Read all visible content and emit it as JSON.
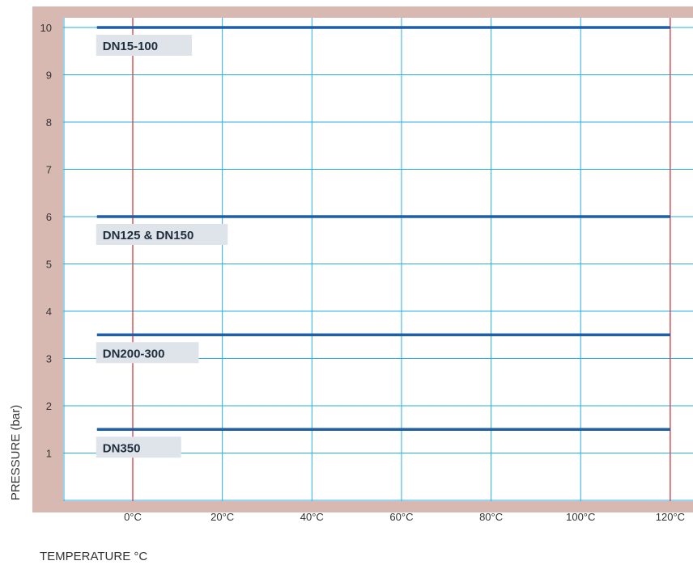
{
  "chart_data": {
    "type": "line",
    "title": "",
    "xlabel": "TEMPERATURE °C",
    "ylabel": "PRESSURE (bar)",
    "x_ticks": [
      0,
      20,
      40,
      60,
      80,
      100,
      120
    ],
    "x_tick_labels": [
      "0°C",
      "20°C",
      "40°C",
      "60°C",
      "80°C",
      "100°C",
      "120°C"
    ],
    "xlim": [
      -15,
      125
    ],
    "y_ticks": [
      1,
      2,
      3,
      4,
      5,
      6,
      7,
      8,
      9,
      10
    ],
    "y_tick_labels": [
      "1",
      "2",
      "3",
      "4",
      "5",
      "6",
      "7",
      "8",
      "9",
      "10"
    ],
    "ylim": [
      0,
      10
    ],
    "grid": true,
    "reference_lines_x": [
      0,
      120
    ],
    "series": [
      {
        "name": "DN15-100",
        "x": [
          -8,
          120
        ],
        "y": [
          10,
          10
        ]
      },
      {
        "name": "DN125 & DN150",
        "x": [
          -8,
          120
        ],
        "y": [
          6,
          6
        ]
      },
      {
        "name": "DN200-300",
        "x": [
          -8,
          120
        ],
        "y": [
          3.5,
          3.5
        ]
      },
      {
        "name": "DN350",
        "x": [
          -8,
          120
        ],
        "y": [
          1.5,
          1.5
        ]
      }
    ],
    "colors": {
      "frame": "#d7b9b2",
      "grid": "#27aee6",
      "reference": "#d63c3c",
      "series": "#1f5fa6",
      "label_box": "#dfe3ea",
      "plot_bg": "#ffffff"
    }
  }
}
